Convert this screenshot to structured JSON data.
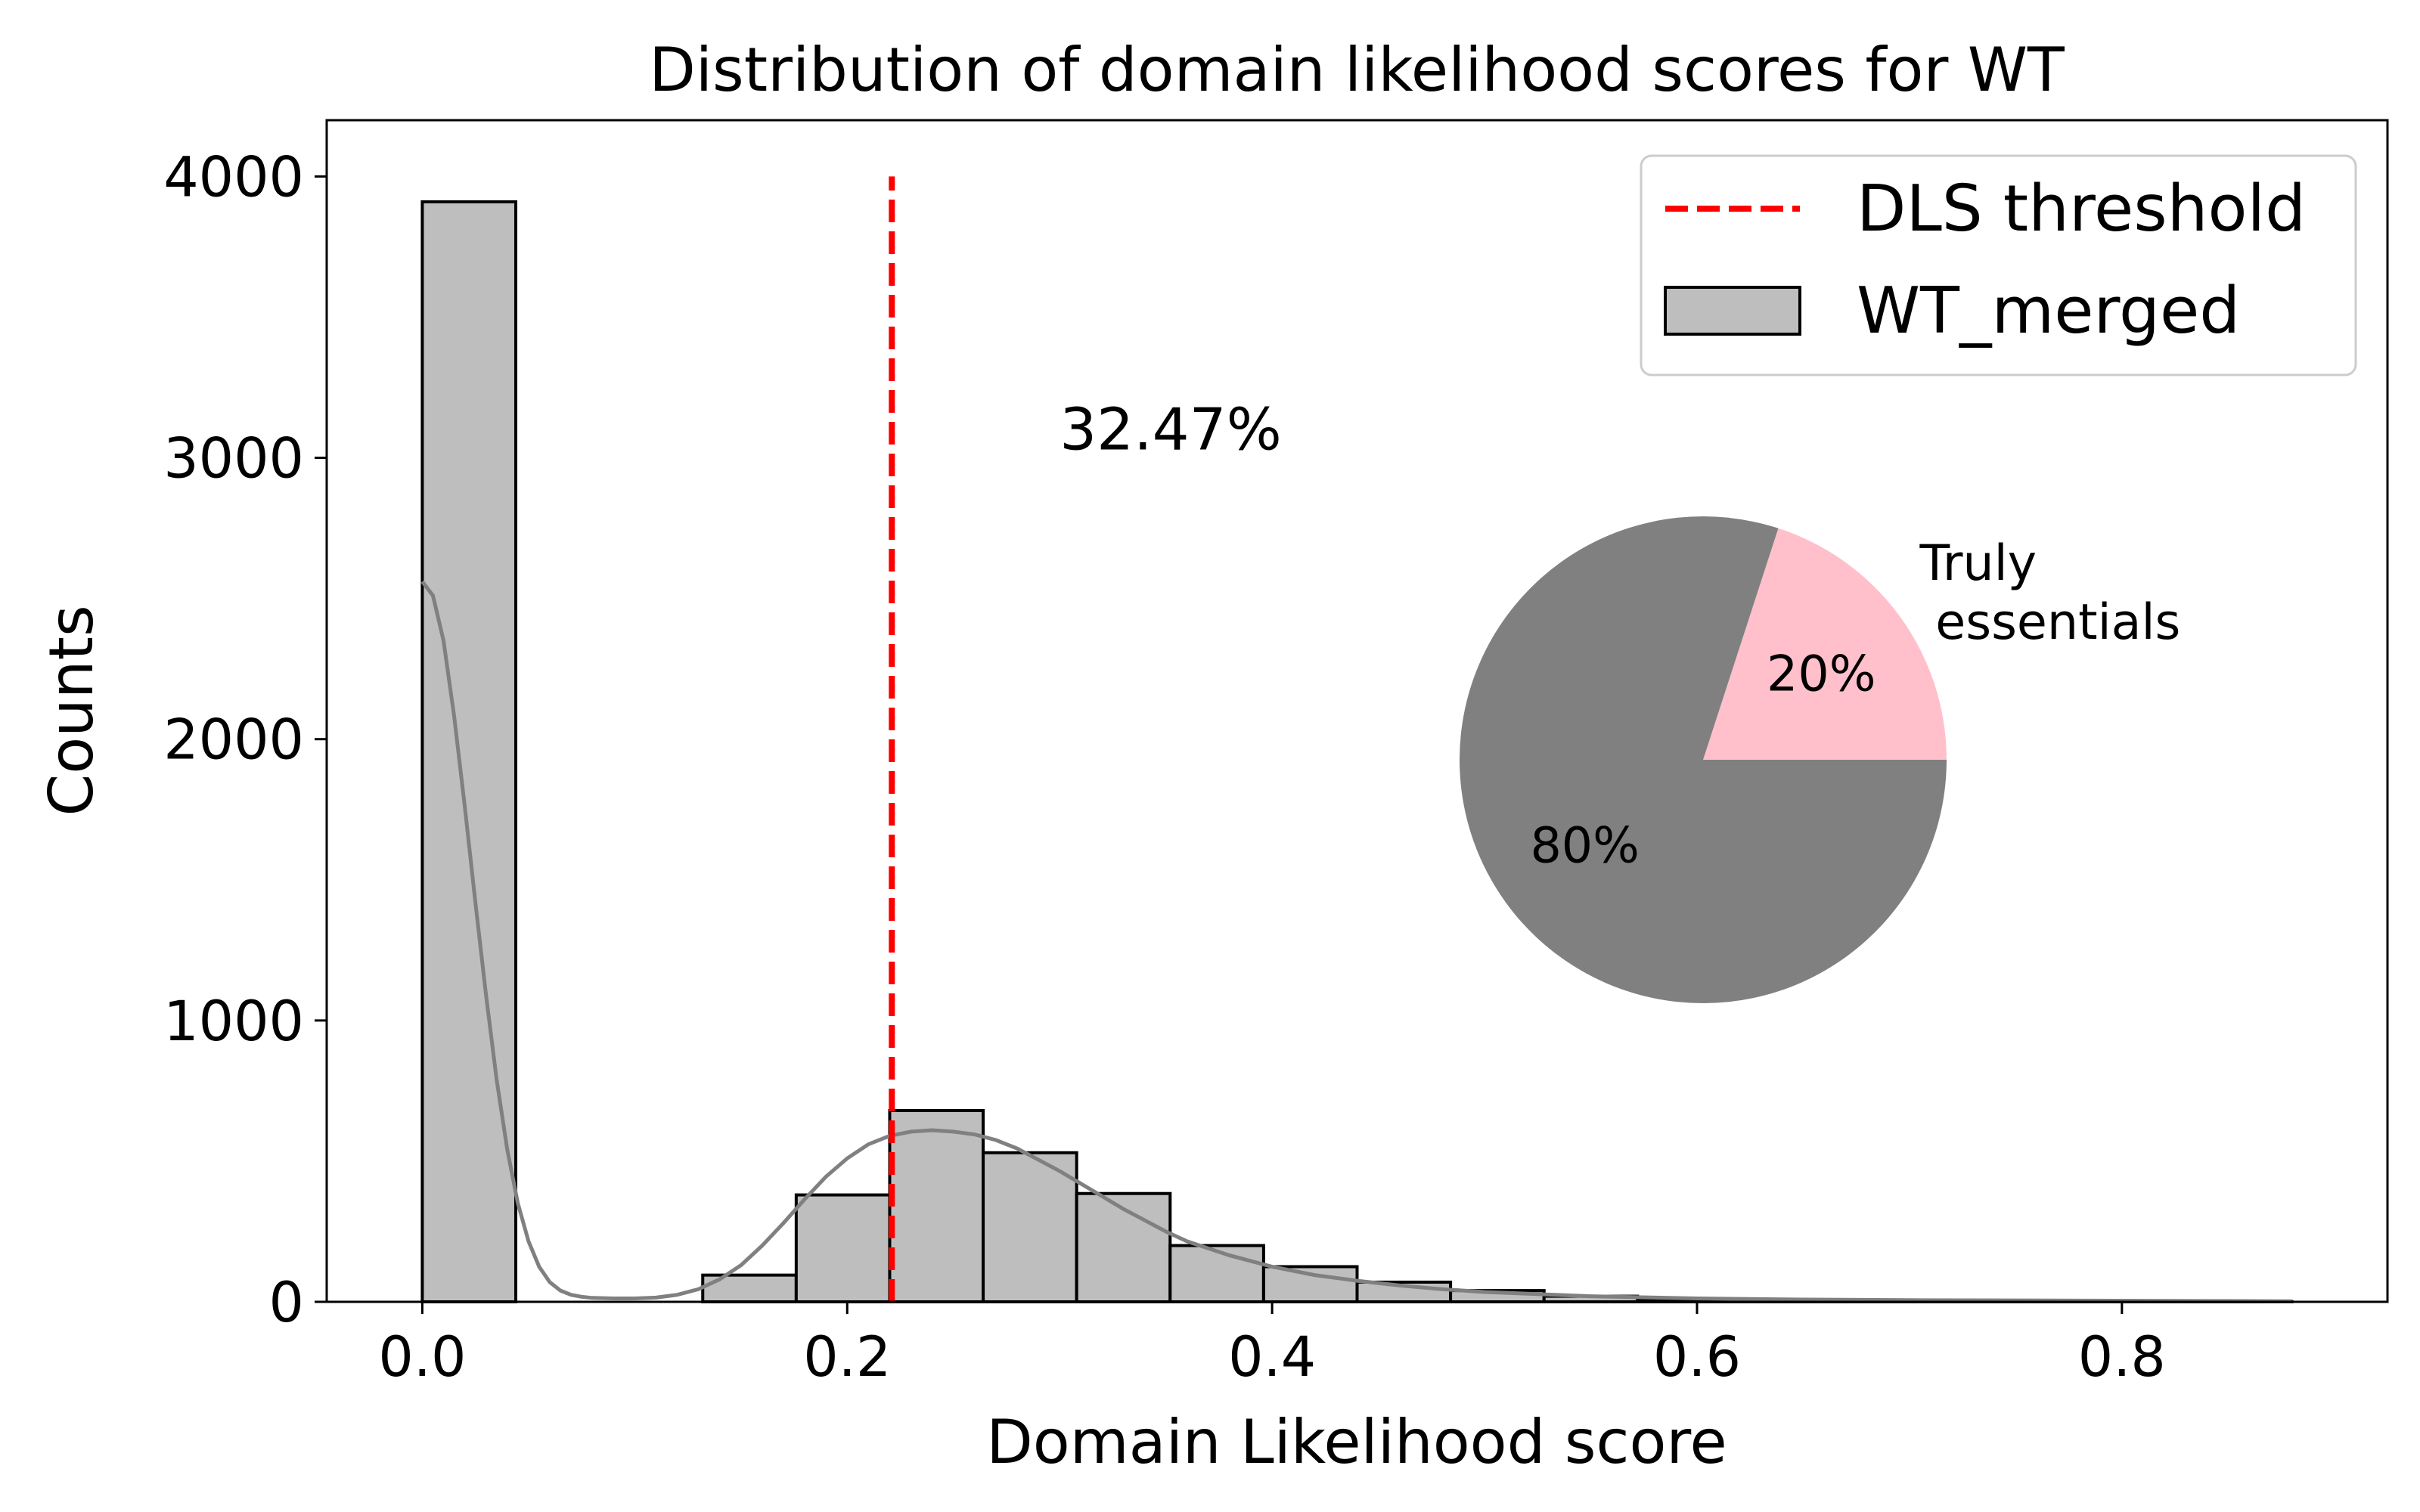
{
  "chart_data": {
    "type": "bar",
    "title": "Distribution of domain likelihood scores for WT",
    "xlabel": "Domain Likelihood score",
    "ylabel": "Counts",
    "xlim": [
      -0.045,
      0.925
    ],
    "ylim": [
      0,
      4200
    ],
    "xticks": [
      {
        "value": 0.0,
        "label": "0.0"
      },
      {
        "value": 0.2,
        "label": "0.2"
      },
      {
        "value": 0.4,
        "label": "0.4"
      },
      {
        "value": 0.6,
        "label": "0.6"
      },
      {
        "value": 0.8,
        "label": "0.8"
      }
    ],
    "yticks": [
      {
        "value": 0,
        "label": "0"
      },
      {
        "value": 1000,
        "label": "1000"
      },
      {
        "value": 2000,
        "label": "2000"
      },
      {
        "value": 3000,
        "label": "3000"
      },
      {
        "value": 4000,
        "label": "4000"
      }
    ],
    "grid": false,
    "legend_position": "top-right",
    "series": [
      {
        "name": "WT_merged",
        "type": "histogram",
        "color": "#bebebe",
        "edge_color": "#000000",
        "bin_edges": [
          0.0,
          0.044,
          0.088,
          0.132,
          0.176,
          0.22,
          0.264,
          0.308,
          0.352,
          0.396,
          0.44,
          0.484,
          0.528,
          0.572,
          0.616,
          0.66,
          0.704,
          0.748,
          0.792,
          0.836,
          0.88
        ],
        "values": [
          3910,
          0,
          0,
          95,
          380,
          680,
          530,
          385,
          200,
          125,
          70,
          40,
          20,
          10,
          5,
          3,
          2,
          2,
          1,
          1
        ]
      },
      {
        "name": "DLS threshold",
        "type": "vline",
        "color": "#ff0000",
        "x": 0.221,
        "y_range": [
          0,
          4000
        ]
      },
      {
        "name": "KDE",
        "type": "line",
        "color": "#808080",
        "x": [
          0.0,
          0.005,
          0.01,
          0.015,
          0.02,
          0.025,
          0.03,
          0.035,
          0.04,
          0.045,
          0.05,
          0.055,
          0.06,
          0.065,
          0.07,
          0.075,
          0.08,
          0.09,
          0.1,
          0.11,
          0.12,
          0.13,
          0.14,
          0.15,
          0.16,
          0.17,
          0.18,
          0.19,
          0.2,
          0.21,
          0.22,
          0.23,
          0.24,
          0.25,
          0.26,
          0.27,
          0.28,
          0.29,
          0.3,
          0.31,
          0.32,
          0.33,
          0.34,
          0.35,
          0.36,
          0.38,
          0.4,
          0.42,
          0.44,
          0.46,
          0.48,
          0.5,
          0.55,
          0.6,
          0.65,
          0.7,
          0.75,
          0.8,
          0.85,
          0.88
        ],
        "y": [
          2560,
          2510,
          2350,
          2080,
          1760,
          1420,
          1090,
          790,
          540,
          350,
          215,
          125,
          70,
          40,
          25,
          18,
          14,
          12,
          12,
          15,
          25,
          45,
          80,
          130,
          200,
          280,
          365,
          445,
          510,
          560,
          590,
          605,
          610,
          605,
          595,
          575,
          545,
          505,
          465,
          420,
          375,
          330,
          290,
          250,
          215,
          165,
          125,
          95,
          75,
          58,
          45,
          35,
          20,
          12,
          8,
          6,
          5,
          4,
          3,
          2
        ]
      }
    ],
    "annotations": [
      {
        "text": "32.47%",
        "x": 0.3,
        "y": 3030
      }
    ],
    "inset_pie": {
      "slices": [
        {
          "label": "Truly\n essentials",
          "value": 20,
          "percent_label": "20%",
          "color": "#ffc0cb"
        },
        {
          "label": "",
          "value": 80,
          "percent_label": "80%",
          "color": "#808080"
        }
      ]
    }
  }
}
